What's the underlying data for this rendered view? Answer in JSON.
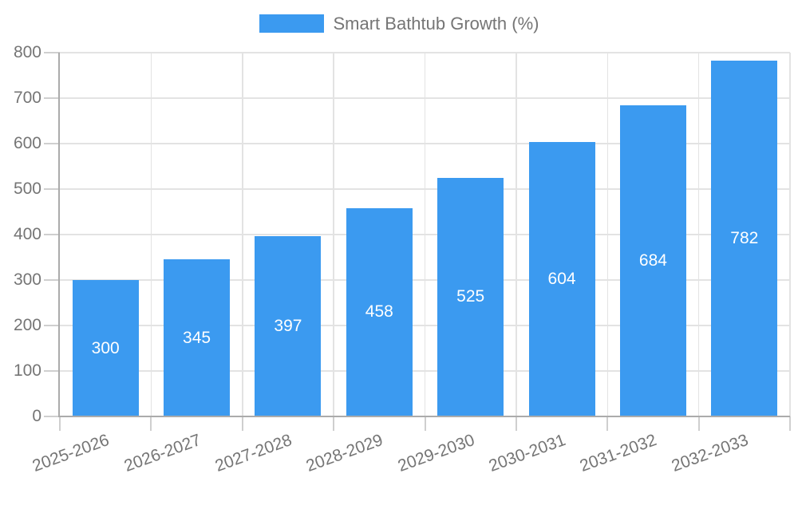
{
  "chart_data": {
    "type": "bar",
    "legend_label": "Smart Bathtub Growth (%)",
    "legend_position": "top-center",
    "categories": [
      "2025-2026",
      "2026-2027",
      "2027-2028",
      "2028-2029",
      "2029-2030",
      "2030-2031",
      "2031-2032",
      "2032-2033"
    ],
    "values": [
      300,
      345,
      397,
      458,
      525,
      604,
      684,
      782
    ],
    "value_labels_inside_bars": true,
    "xlabel": "",
    "ylabel": "",
    "ylim": [
      0,
      800
    ],
    "ytick_step": 100,
    "yticks": [
      0,
      100,
      200,
      300,
      400,
      500,
      600,
      700,
      800
    ],
    "grid": true,
    "x_label_rotation_deg": -20,
    "colors": {
      "bar": "#3b9af0",
      "value_label": "#ffffff",
      "axis_text": "#757575",
      "grid_line": "#e3e3e3",
      "tick_mark": "#cfcfcf",
      "axis_line": "#ababab",
      "background": "#ffffff"
    }
  }
}
